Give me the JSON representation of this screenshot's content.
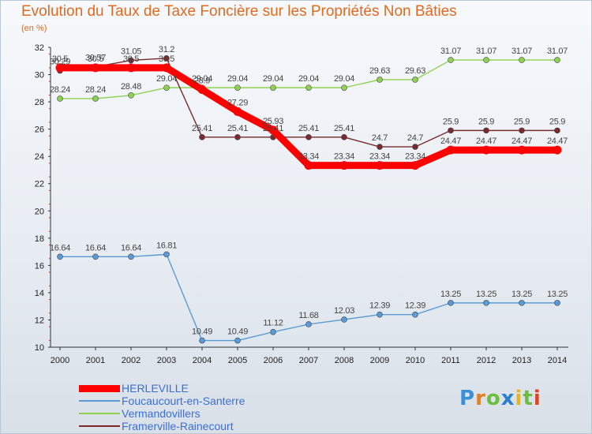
{
  "chart_data": {
    "type": "line",
    "title": "Evolution du Taux de Taxe Foncière sur les Propriétés Non Bâties",
    "subtitle": "(en %)",
    "x": [
      2000,
      2001,
      2002,
      2003,
      2004,
      2005,
      2006,
      2007,
      2008,
      2009,
      2010,
      2011,
      2012,
      2013,
      2014
    ],
    "ylim": [
      10,
      32
    ],
    "yticks": [
      10,
      12,
      14,
      16,
      18,
      20,
      22,
      24,
      26,
      28,
      30,
      32
    ],
    "grid": false,
    "legend_position": "bottom-left",
    "series": [
      {
        "name": "HERLEVILLE",
        "color": "#ff0000",
        "values": [
          30.5,
          30.5,
          30.5,
          30.5,
          28.9,
          27.29,
          25.93,
          23.34,
          23.34,
          23.34,
          23.34,
          24.47,
          24.47,
          24.47,
          24.47
        ],
        "labels": [
          "30.5",
          "30.5",
          "30.5",
          "30.5",
          "28.9",
          "27.29",
          "25.93",
          "23.34",
          "23.34",
          "23.34",
          "23.34",
          "24.47",
          "24.47",
          "24.47",
          "24.47"
        ]
      },
      {
        "name": "Foucaucourt-en-Santerre",
        "color": "#5b9bd5",
        "values": [
          16.64,
          16.64,
          16.64,
          16.81,
          10.49,
          10.49,
          11.12,
          11.68,
          12.03,
          12.39,
          12.39,
          13.25,
          13.25,
          13.25,
          13.25
        ],
        "labels": [
          "16.64",
          "16.64",
          "16.64",
          "16.81",
          "10.49",
          "10.49",
          "11.12",
          "11.68",
          "12.03",
          "12.39",
          "12.39",
          "13.25",
          "13.25",
          "13.25",
          "13.25"
        ]
      },
      {
        "name": "Vermandovillers",
        "color": "#8fd14f",
        "values": [
          28.24,
          28.24,
          28.48,
          29.04,
          29.04,
          29.04,
          29.04,
          29.04,
          29.04,
          29.63,
          29.63,
          31.07,
          31.07,
          31.07,
          31.07
        ],
        "labels": [
          "28.24",
          "28.24",
          "28.48",
          "29.04",
          "29.04",
          "29.04",
          "29.04",
          "29.04",
          "29.04",
          "29.63",
          "29.63",
          "31.07",
          "31.07",
          "31.07",
          "31.07"
        ]
      },
      {
        "name": "Framerville-Rainecourt",
        "color": "#7b2a2a",
        "values": [
          30.29,
          30.57,
          31.05,
          31.2,
          25.41,
          25.41,
          25.41,
          25.41,
          25.41,
          24.7,
          24.7,
          25.9,
          25.9,
          25.9,
          25.9
        ],
        "labels": [
          "30.29",
          "30.57",
          "31.05",
          "31.2",
          "25.41",
          "25.41",
          "25.41",
          "25.41",
          "25.41",
          "24.7",
          "24.7",
          "25.9",
          "25.9",
          "25.9",
          "25.9"
        ]
      }
    ]
  },
  "logo_text": "Proxiti"
}
